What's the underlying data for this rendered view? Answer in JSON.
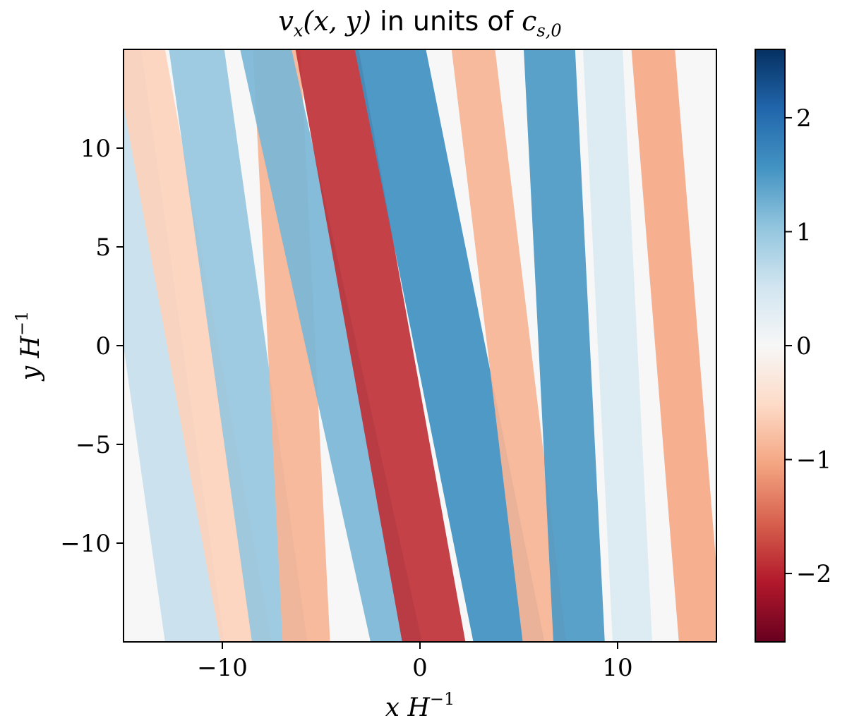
{
  "title": {
    "prefix_math": "v",
    "prefix_sub": "x",
    "prefix_args": "(x, y)",
    "middle_text": " in units of ",
    "suffix_math": "c",
    "suffix_sub": "s,0"
  },
  "chart_data": {
    "type": "heatmap",
    "title": "v_x(x, y) in units of c_{s,0}",
    "xlabel": "x H^{-1}",
    "ylabel": "y H^{-1}",
    "xlim": [
      -15,
      15
    ],
    "ylim": [
      -15,
      15
    ],
    "xticks": [
      -10,
      0,
      10
    ],
    "yticks": [
      -10,
      -5,
      0,
      5,
      10
    ],
    "colorbar": {
      "range": [
        -2.6,
        2.6
      ],
      "ticks": [
        -2,
        -1,
        0,
        1,
        2
      ],
      "colormap": "RdBu"
    },
    "field_bands": [
      {
        "x0": -13.5,
        "slope": -0.14,
        "width": 1.5,
        "value": 0.6
      },
      {
        "x0": -11.5,
        "slope": -0.18,
        "width": 1.3,
        "value": -0.6
      },
      {
        "x0": -9.2,
        "slope": -0.14,
        "width": 1.4,
        "value": 1.0
      },
      {
        "x0": -6.5,
        "slope": -0.05,
        "width": 1.2,
        "value": -0.9
      },
      {
        "x0": -4.5,
        "slope": -0.22,
        "width": 1.3,
        "value": 1.2
      },
      {
        "x0": -2.0,
        "slope": -0.18,
        "width": 1.6,
        "value": -1.9
      },
      {
        "x0": 1.5,
        "slope": -0.2,
        "width": 1.8,
        "value": 1.6
      },
      {
        "x0": 4.5,
        "slope": -0.12,
        "width": 1.1,
        "value": -0.9
      },
      {
        "x0": 7.3,
        "slope": -0.05,
        "width": 1.3,
        "value": 1.5
      },
      {
        "x0": 10.0,
        "slope": -0.05,
        "width": 1.0,
        "value": 0.4
      },
      {
        "x0": 13.0,
        "slope": -0.08,
        "width": 1.1,
        "value": -1.0
      }
    ]
  }
}
